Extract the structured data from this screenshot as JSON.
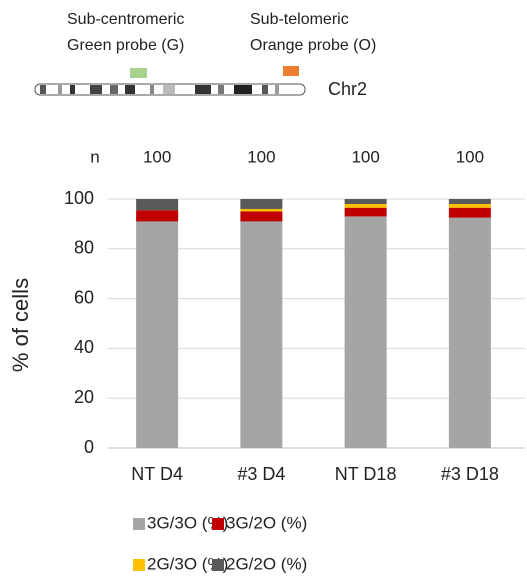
{
  "chart_data": {
    "type": "stacked_bar",
    "annotations": [
      "Sub-centromeric",
      "Green probe (G)",
      "Sub-telomeric",
      "Orange probe (O)",
      "Chr2"
    ],
    "probe_colors": [
      "#a9d18e",
      "#ed7d31"
    ],
    "n_label": "n",
    "n_values": [
      100,
      100,
      100,
      100
    ],
    "ylabel": "% of cells",
    "categories": [
      "NT D4",
      "#3 D4",
      "NT D18",
      "#3 D18"
    ],
    "series": [
      {
        "name": "3G/3O (%)",
        "color": "#a5a5a5",
        "values": [
          91,
          91,
          93,
          92.5
        ]
      },
      {
        "name": "3G/2O (%)",
        "color": "#c00000",
        "values": [
          4.5,
          4,
          3.5,
          4
        ]
      },
      {
        "name": "2G/3O (%)",
        "color": "#ffc000",
        "values": [
          0,
          1,
          1.5,
          1.5
        ]
      },
      {
        "name": "2G/2O (%)",
        "color": "#595959",
        "values": [
          4.5,
          4,
          2,
          2
        ]
      }
    ],
    "ylim": [
      0,
      100
    ],
    "yticks": [
      0,
      20,
      40,
      60,
      80,
      100
    ],
    "grid": true
  }
}
